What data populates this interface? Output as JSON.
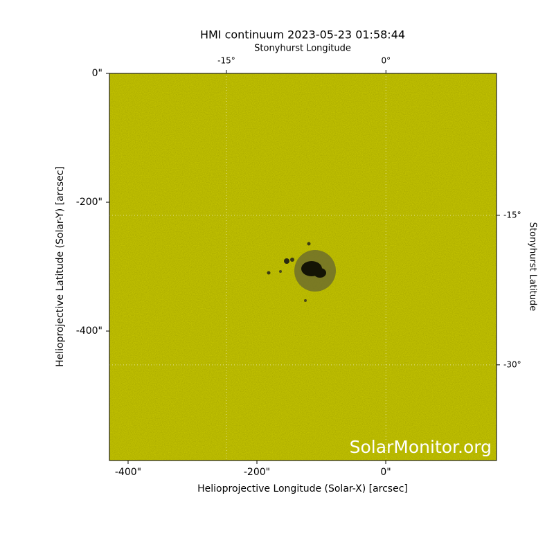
{
  "chart_data": {
    "type": "image",
    "title": "HMI continuum 2023-05-23 01:58:44",
    "xlabel": "Helioprojective Longitude (Solar-X) [arcsec]",
    "ylabel": "Helioprojective Latitude (Solar-Y) [arcsec]",
    "x2label": "Stonyhurst Longitude",
    "y2label": "Stonyhurst Latitude",
    "watermark": "SolarMonitor.org",
    "color": "#c9c900",
    "xlim": [
      -429,
      172
    ],
    "ylim": [
      -601,
      0
    ],
    "xticks": [
      {
        "value": -400,
        "label": "-400\""
      },
      {
        "value": -200,
        "label": "-200\""
      },
      {
        "value": 0,
        "label": "0\""
      }
    ],
    "yticks": [
      {
        "value": 0,
        "label": "0\""
      },
      {
        "value": -200,
        "label": "-200\""
      },
      {
        "value": -400,
        "label": "-400\""
      }
    ],
    "x2lim": [
      -26.0,
      10.4
    ],
    "x2ticks": [
      {
        "value": -15,
        "label": "-15°"
      },
      {
        "value": 0,
        "label": "0°"
      }
    ],
    "y2lim": [
      -39.6,
      -0.76
    ],
    "y2ticks": [
      {
        "value": -15,
        "label": "-15°"
      },
      {
        "value": -30,
        "label": "-30°"
      }
    ],
    "grid": true
  }
}
